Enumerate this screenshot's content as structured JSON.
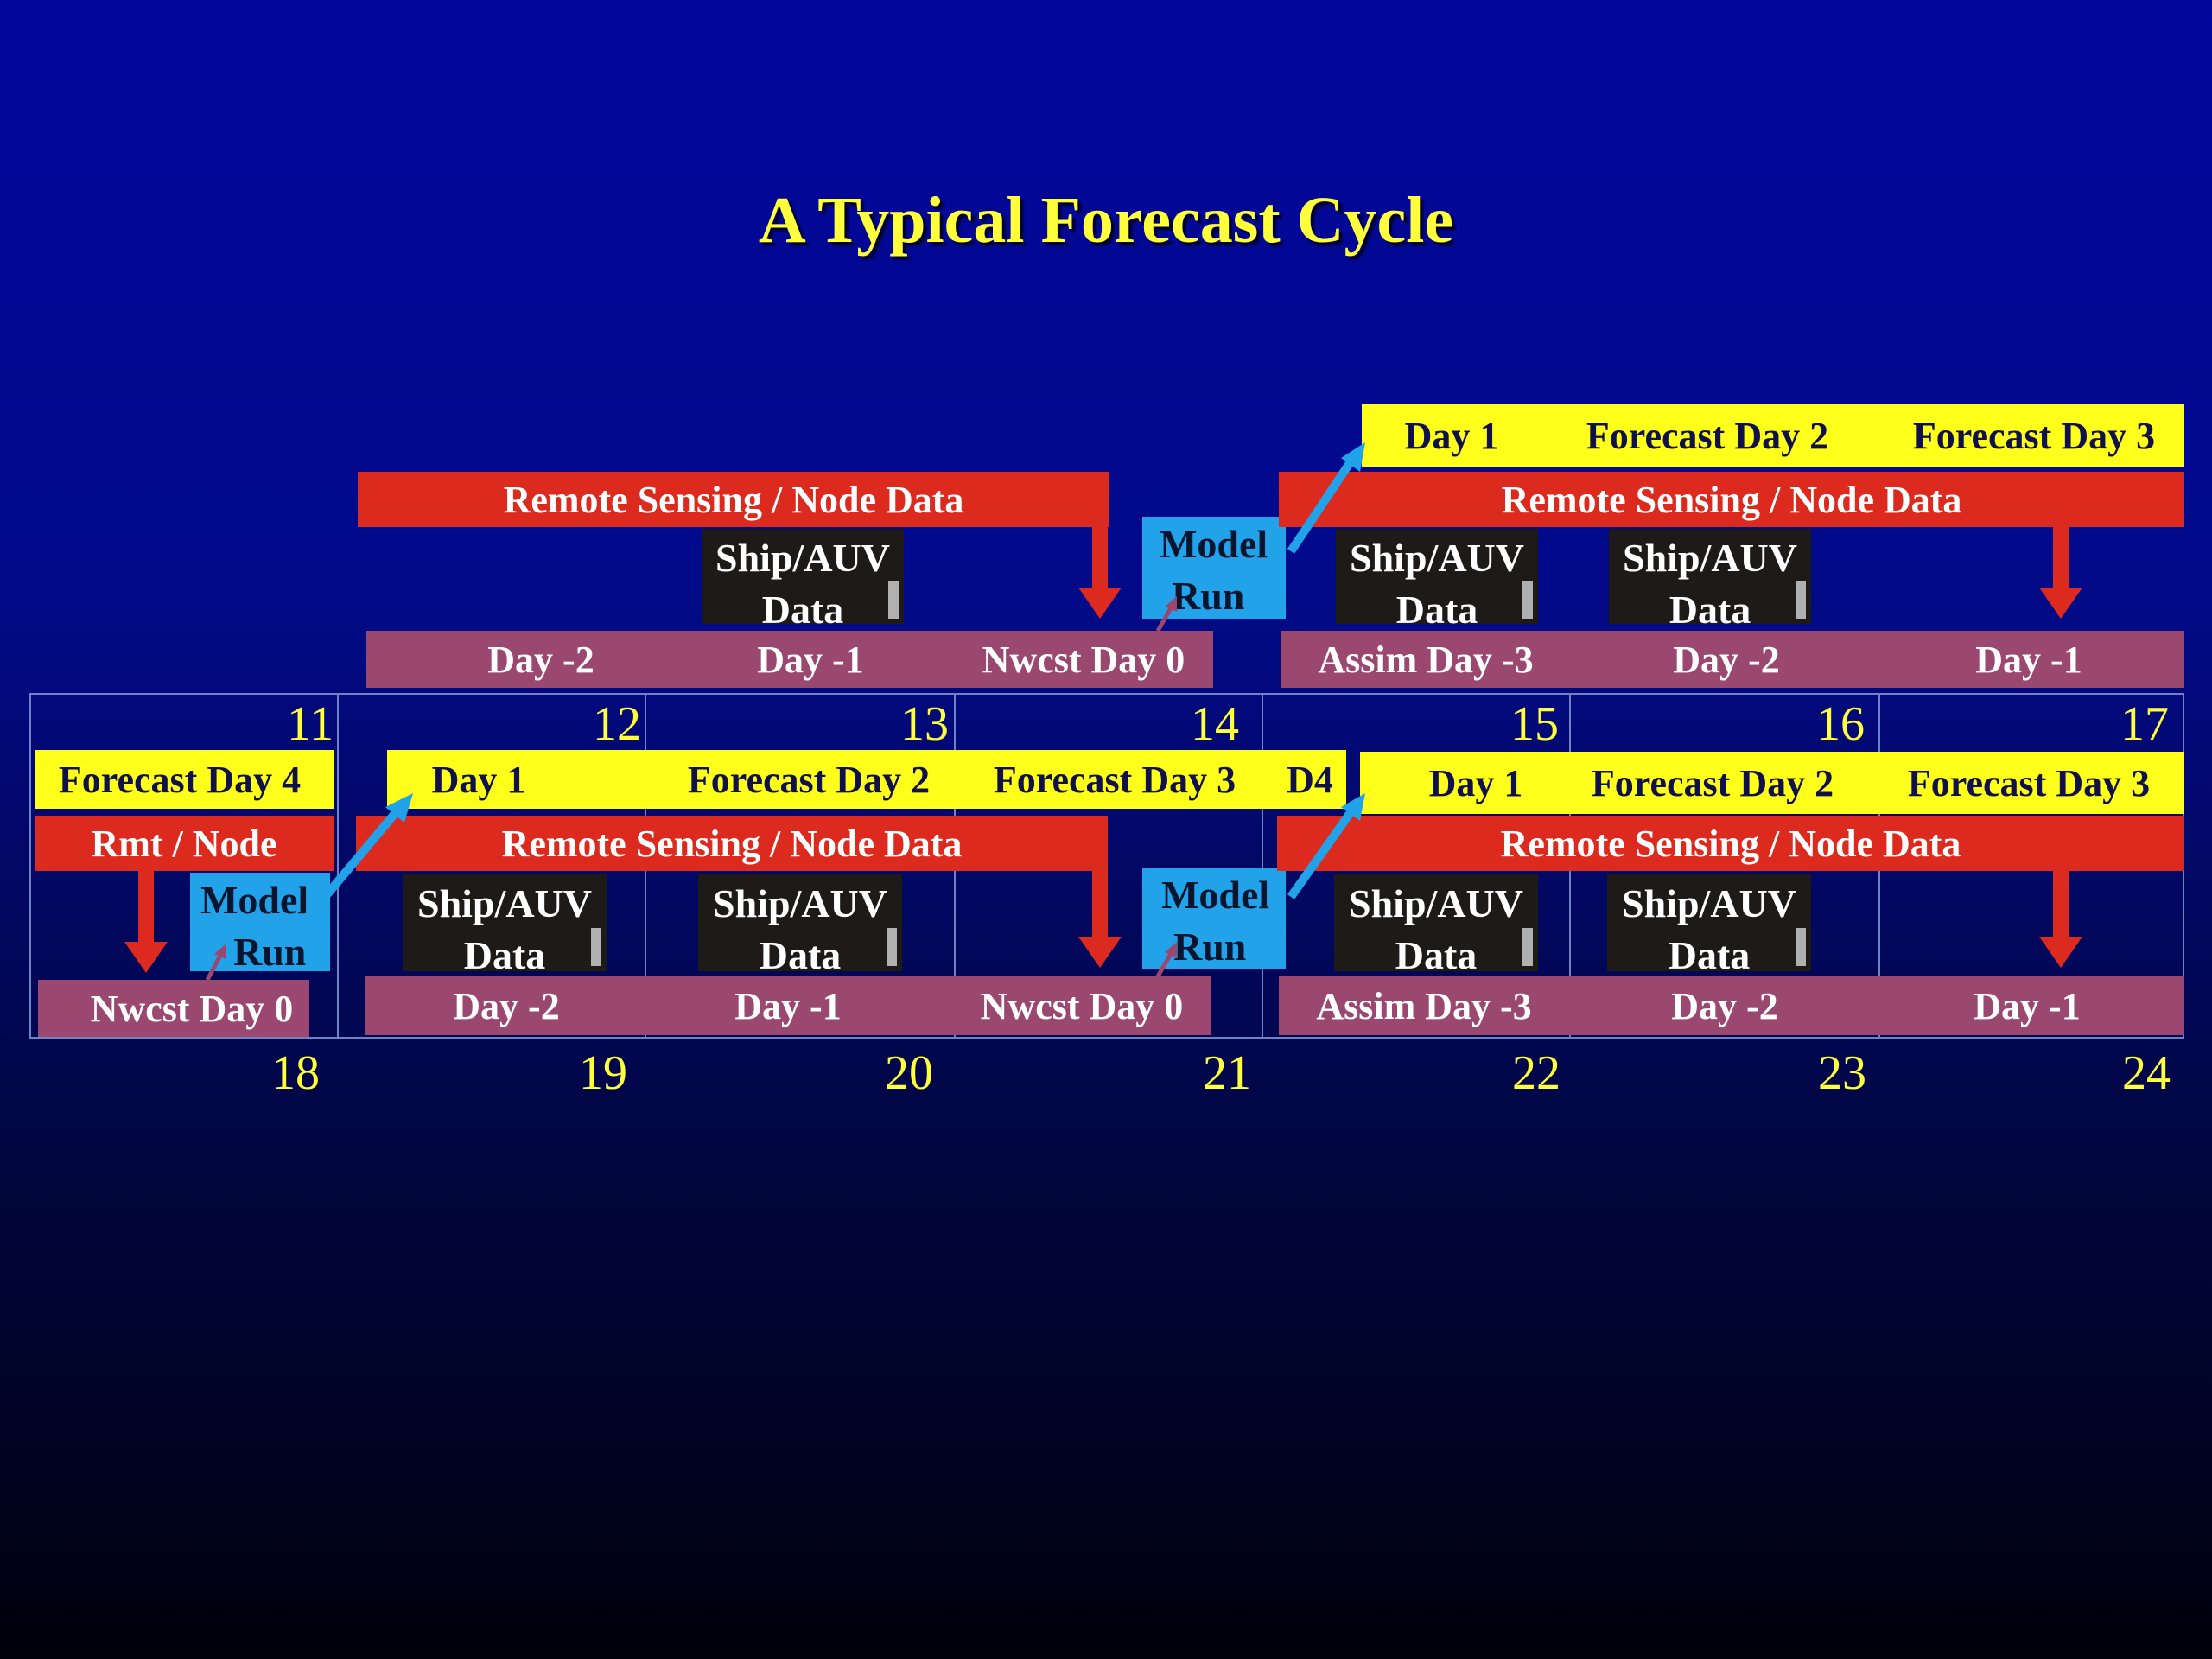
{
  "title": "A Typical Forecast Cycle",
  "top_dates": [
    "11",
    "12",
    "13",
    "14",
    "15",
    "16",
    "17"
  ],
  "bottom_dates": [
    "18",
    "19",
    "20",
    "21",
    "22",
    "23",
    "24"
  ],
  "upper": {
    "left": {
      "rs_label": "Remote Sensing / Node Data",
      "ship": {
        "line1": "Ship/AUV",
        "line2": "Data"
      },
      "days": [
        "Day -2",
        "Day -1",
        "Nwcst Day 0"
      ],
      "model": {
        "line1": "Model",
        "line2": "Run"
      }
    },
    "right": {
      "forecast": [
        "Day 1",
        "Forecast Day 2",
        "Forecast Day 3"
      ],
      "rs_label": "Remote Sensing / Node Data",
      "ships": [
        {
          "line1": "Ship/AUV",
          "line2": "Data"
        },
        {
          "line1": "Ship/AUV",
          "line2": "Data"
        }
      ],
      "days": [
        "Assim Day -3",
        "Day -2",
        "Day -1"
      ]
    }
  },
  "lower": {
    "first": {
      "forecast": "Forecast Day 4",
      "rs_label": "Rmt / Node",
      "model": {
        "line1": "Model",
        "line2": "Run"
      },
      "day": "Nwcst Day 0"
    },
    "middle": {
      "forecast": [
        "Day 1",
        "Forecast Day 2",
        "Forecast Day 3",
        "D4"
      ],
      "rs_label": "Remote Sensing / Node Data",
      "ships": [
        {
          "line1": "Ship/AUV",
          "line2": "Data"
        },
        {
          "line1": "Ship/AUV",
          "line2": "Data"
        }
      ],
      "days": [
        "Day -2",
        "Day -1",
        "Nwcst Day 0"
      ],
      "model": {
        "line1": "Model",
        "line2": "Run"
      }
    },
    "right": {
      "forecast": [
        "Day 1",
        "Forecast Day 2",
        "Forecast Day 3"
      ],
      "rs_label": "Remote Sensing / Node Data",
      "ships": [
        {
          "line1": "Ship/AUV",
          "line2": "Data"
        },
        {
          "line1": "Ship/AUV",
          "line2": "Data"
        }
      ],
      "days": [
        "Assim Day -3",
        "Day -2",
        "Day -1"
      ]
    }
  },
  "colors": {
    "forecast_bar": "#ffff1c",
    "remote_sensing_bar": "#dc2a1e",
    "day_bar": "#9a4870",
    "ship_box": "#1d1a18",
    "model_box": "#22a2e8",
    "date_text": "#ffff3c"
  }
}
